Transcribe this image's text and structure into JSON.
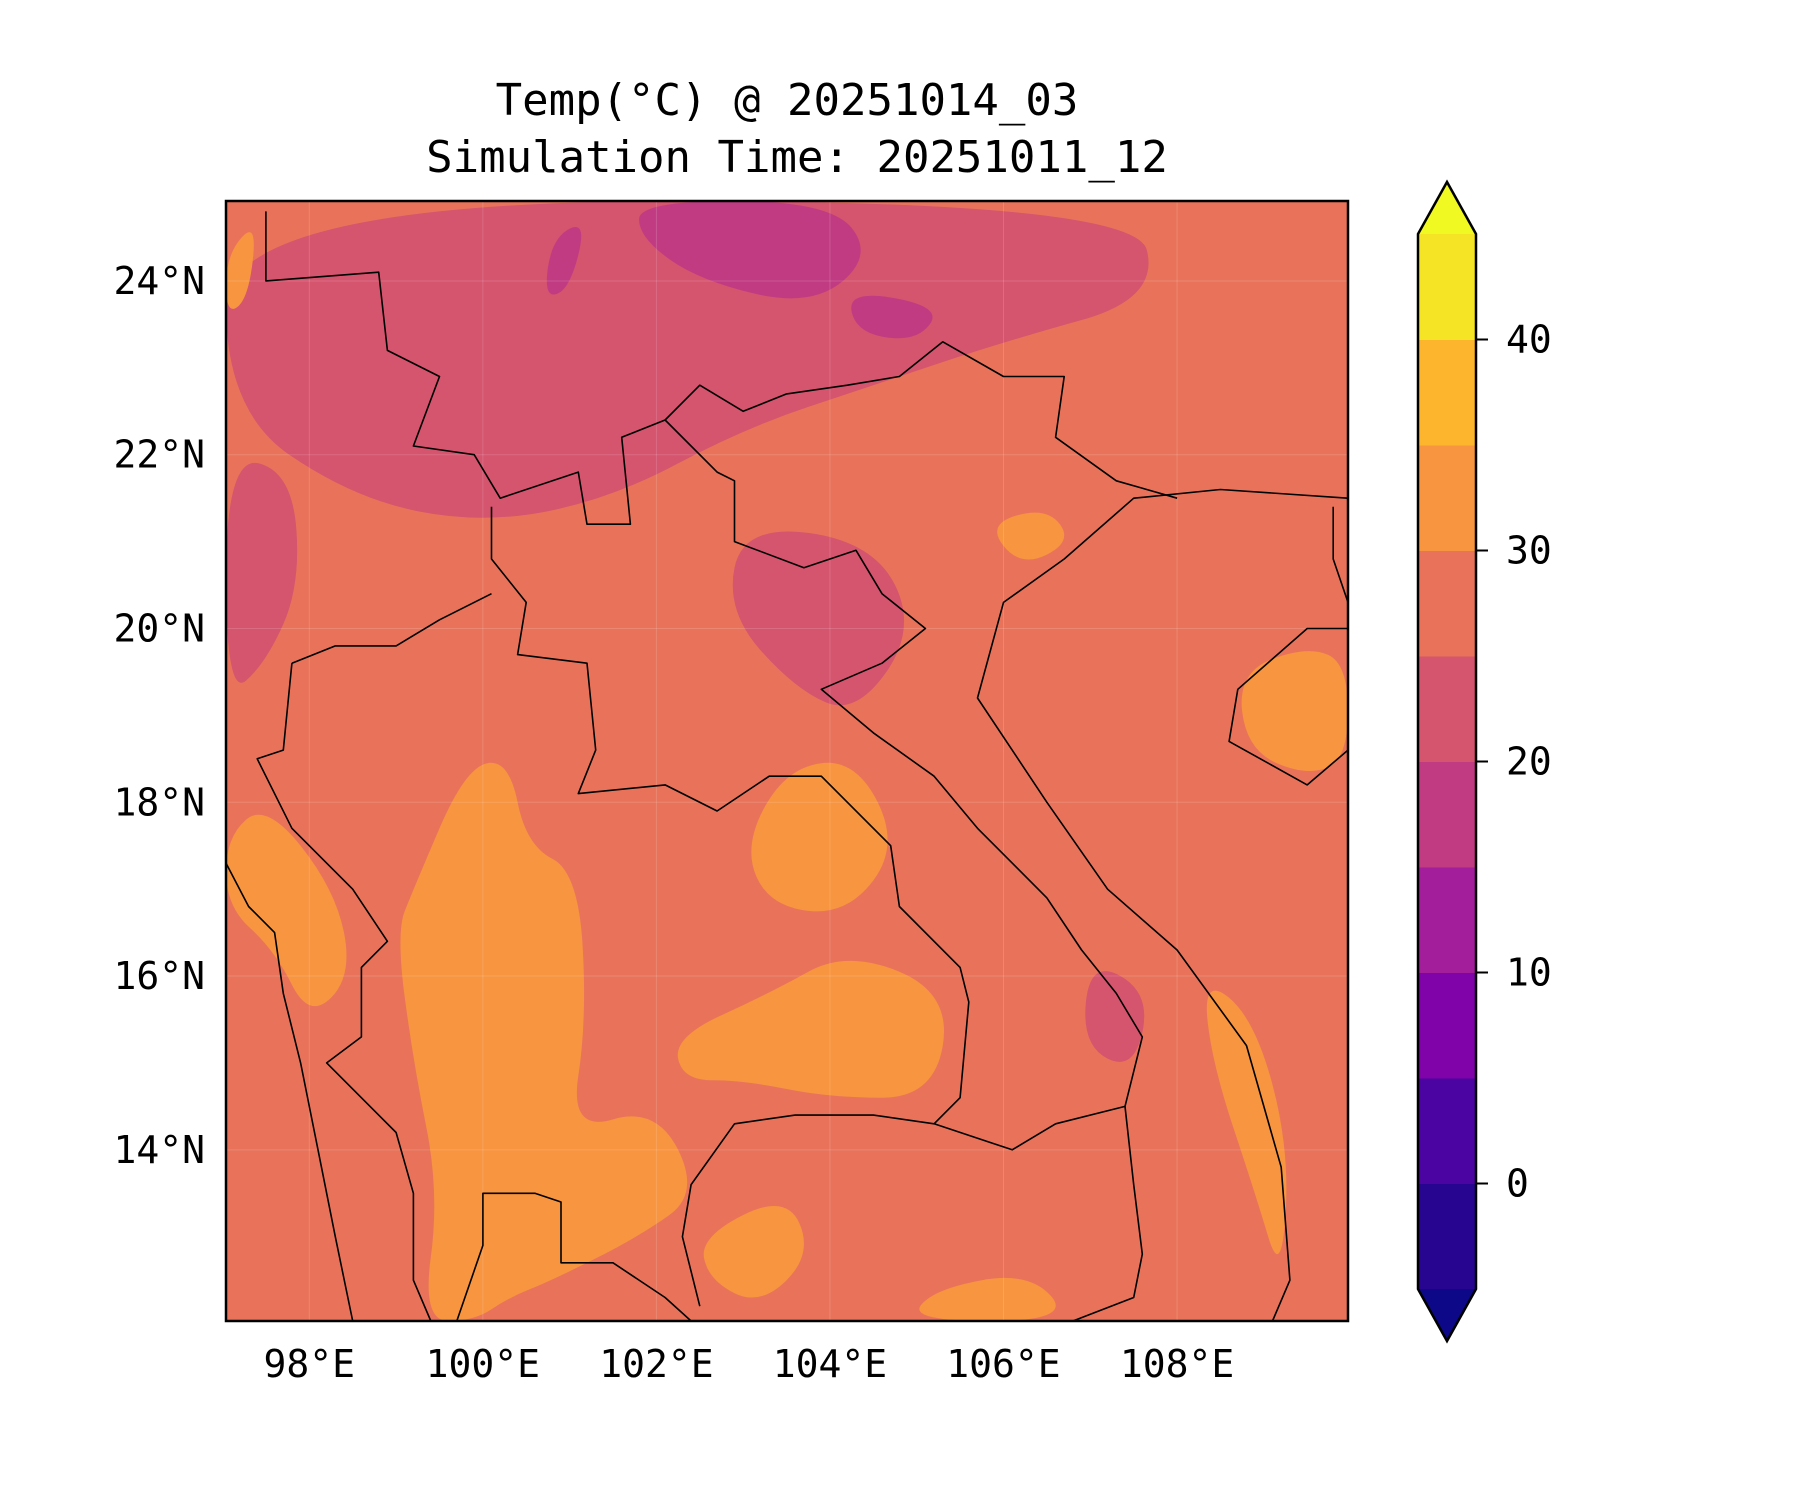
{
  "chart_data": {
    "type": "heatmap",
    "subtype": "filled-contour-map",
    "title": "Temp(°C) @ 20251014_03",
    "subtitle": "Simulation Time: 20251011_12",
    "xlim": [
      97.04,
      109.97
    ],
    "ylim": [
      12.03,
      24.92
    ],
    "x_ticks": [
      98,
      100,
      102,
      104,
      106,
      108
    ],
    "x_tick_labels": [
      "98°E",
      "100°E",
      "102°E",
      "104°E",
      "106°E",
      "108°E"
    ],
    "y_ticks": [
      24,
      22,
      20,
      18,
      16,
      14
    ],
    "y_tick_labels": [
      "24°N",
      "22°N",
      "20°N",
      "18°N",
      "16°N",
      "14°N"
    ],
    "grid": true,
    "colorbar": {
      "placement": "right",
      "extend": "both",
      "levels": [
        -5,
        0,
        5,
        10,
        15,
        20,
        25,
        30,
        35,
        40,
        45
      ],
      "colors": [
        "#270591",
        "#4B03A1",
        "#7F03A8",
        "#A31E9A",
        "#C13B82",
        "#D5546E",
        "#E8735A",
        "#F89540",
        "#FDB52E",
        "#F5E425"
      ],
      "under_color": "#0D0887",
      "over_color": "#F0F921",
      "ticks": [
        0,
        10,
        20,
        30,
        40
      ],
      "tick_labels": [
        "0",
        "10",
        "20",
        "30",
        "40"
      ]
    },
    "background_level_color": "#E8735A",
    "regions": [
      {
        "color": "#D5546E",
        "poly": [
          [
            97.04,
            24.92
          ],
          [
            107.5,
            24.92
          ],
          [
            107.8,
            23.8
          ],
          [
            106,
            23.3
          ],
          [
            104.5,
            22.8
          ],
          [
            103,
            22.3
          ],
          [
            101.5,
            21.5
          ],
          [
            100,
            21.2
          ],
          [
            98.5,
            21.5
          ],
          [
            97.04,
            22.5
          ]
        ]
      },
      {
        "color": "#D5546E",
        "poly": [
          [
            97.04,
            22.0
          ],
          [
            97.8,
            21.8
          ],
          [
            97.9,
            20.5
          ],
          [
            97.5,
            19.6
          ],
          [
            97.04,
            19.2
          ]
        ]
      },
      {
        "color": "#D5546E",
        "poly": [
          [
            103.0,
            21.2
          ],
          [
            104.5,
            21.0
          ],
          [
            105.0,
            20.0
          ],
          [
            104.3,
            19.0
          ],
          [
            103.6,
            19.3
          ],
          [
            102.8,
            20.2
          ]
        ]
      },
      {
        "color": "#D5546E",
        "poly": [
          [
            107.0,
            16.2
          ],
          [
            107.7,
            15.8
          ],
          [
            107.5,
            14.9
          ],
          [
            106.9,
            15.2
          ]
        ]
      },
      {
        "color": "#C13B82",
        "poly": [
          [
            101.8,
            24.92
          ],
          [
            104.0,
            24.92
          ],
          [
            104.5,
            24.3
          ],
          [
            103.8,
            23.7
          ],
          [
            102.5,
            24.0
          ],
          [
            101.8,
            24.5
          ]
        ]
      },
      {
        "color": "#C13B82",
        "poly": [
          [
            104.2,
            23.9
          ],
          [
            105.3,
            23.7
          ],
          [
            105.0,
            23.3
          ],
          [
            104.3,
            23.4
          ]
        ]
      },
      {
        "color": "#C13B82",
        "poly": [
          [
            100.8,
            24.5
          ],
          [
            101.2,
            24.7
          ],
          [
            101.0,
            23.9
          ],
          [
            100.7,
            23.8
          ]
        ]
      },
      {
        "color": "#F89540",
        "poly": [
          [
            99.2,
            17.0
          ],
          [
            99.8,
            18.4
          ],
          [
            100.3,
            18.5
          ],
          [
            100.5,
            17.5
          ],
          [
            101.1,
            17.2
          ],
          [
            101.2,
            15.5
          ],
          [
            101.0,
            14.2
          ],
          [
            102.0,
            14.5
          ],
          [
            102.5,
            13.5
          ],
          [
            101.8,
            13.0
          ],
          [
            100.8,
            12.5
          ],
          [
            100.3,
            12.3
          ],
          [
            99.9,
            12.03
          ],
          [
            99.3,
            12.03
          ],
          [
            99.5,
            13.5
          ],
          [
            99.2,
            15.0
          ],
          [
            99.0,
            16.5
          ]
        ]
      },
      {
        "color": "#F89540",
        "poly": [
          [
            103.5,
            18.4
          ],
          [
            104.3,
            18.5
          ],
          [
            104.8,
            17.5
          ],
          [
            104.2,
            16.7
          ],
          [
            103.3,
            16.8
          ],
          [
            103.0,
            17.5
          ]
        ]
      },
      {
        "color": "#F89540",
        "poly": [
          [
            102.2,
            15.3
          ],
          [
            103.3,
            15.8
          ],
          [
            104.2,
            16.3
          ],
          [
            105.4,
            15.8
          ],
          [
            105.2,
            14.6
          ],
          [
            104.0,
            14.6
          ],
          [
            103.0,
            14.8
          ],
          [
            102.3,
            14.8
          ]
        ]
      },
      {
        "color": "#F89540",
        "poly": [
          [
            97.04,
            17.6
          ],
          [
            97.5,
            18.0
          ],
          [
            98.3,
            17.0
          ],
          [
            98.5,
            16.0
          ],
          [
            98.0,
            15.5
          ],
          [
            97.6,
            16.3
          ],
          [
            97.04,
            16.8
          ]
        ]
      },
      {
        "color": "#F89540",
        "poly": [
          [
            105.8,
            21.2
          ],
          [
            106.5,
            21.4
          ],
          [
            106.8,
            21.0
          ],
          [
            106.2,
            20.7
          ]
        ]
      },
      {
        "color": "#F89540",
        "poly": [
          [
            108.7,
            19.5
          ],
          [
            109.5,
            19.8
          ],
          [
            109.97,
            19.6
          ],
          [
            109.97,
            18.5
          ],
          [
            109.5,
            18.3
          ],
          [
            108.8,
            18.6
          ]
        ]
      },
      {
        "color": "#F89540",
        "poly": [
          [
            102.5,
            13.0
          ],
          [
            103.5,
            13.5
          ],
          [
            103.8,
            12.8
          ],
          [
            103.2,
            12.2
          ],
          [
            102.6,
            12.5
          ]
        ]
      },
      {
        "color": "#F89540",
        "poly": [
          [
            108.3,
            16.0
          ],
          [
            108.9,
            15.5
          ],
          [
            109.3,
            14.0
          ],
          [
            109.2,
            12.5
          ],
          [
            108.9,
            13.5
          ],
          [
            108.4,
            15.0
          ]
        ]
      },
      {
        "color": "#F89540",
        "poly": [
          [
            97.04,
            24.3
          ],
          [
            97.4,
            24.7
          ],
          [
            97.3,
            23.8
          ],
          [
            97.04,
            23.6
          ]
        ]
      },
      {
        "color": "#F89540",
        "poly": [
          [
            105.2,
            12.4
          ],
          [
            106.3,
            12.6
          ],
          [
            106.8,
            12.03
          ],
          [
            104.9,
            12.03
          ]
        ]
      }
    ],
    "borders": [
      [
        [
          109.97,
          21.5
        ],
        [
          108.5,
          21.6
        ],
        [
          107.5,
          21.5
        ],
        [
          106.7,
          20.8
        ],
        [
          106.0,
          20.3
        ],
        [
          105.7,
          19.2
        ],
        [
          106.5,
          18.0
        ],
        [
          107.2,
          17.0
        ],
        [
          108.0,
          16.3
        ],
        [
          108.8,
          15.2
        ],
        [
          109.2,
          13.8
        ],
        [
          109.3,
          12.5
        ],
        [
          109.1,
          12.03
        ]
      ],
      [
        [
          109.97,
          20.0
        ],
        [
          109.5,
          20.0
        ],
        [
          108.7,
          19.3
        ],
        [
          108.6,
          18.7
        ],
        [
          109.5,
          18.2
        ],
        [
          109.97,
          18.6
        ]
      ],
      [
        [
          109.8,
          21.4
        ],
        [
          109.8,
          20.8
        ],
        [
          109.97,
          20.3
        ]
      ],
      [
        [
          97.5,
          24.8
        ],
        [
          97.5,
          24.0
        ],
        [
          98.8,
          24.1
        ],
        [
          98.9,
          23.2
        ],
        [
          99.5,
          22.9
        ],
        [
          99.2,
          22.1
        ],
        [
          99.9,
          22.0
        ],
        [
          100.2,
          21.5
        ],
        [
          101.1,
          21.8
        ],
        [
          101.2,
          21.2
        ],
        [
          101.7,
          21.2
        ],
        [
          101.6,
          22.2
        ],
        [
          102.1,
          22.4
        ],
        [
          102.5,
          22.8
        ],
        [
          103.0,
          22.5
        ],
        [
          103.5,
          22.7
        ],
        [
          104.2,
          22.8
        ],
        [
          104.8,
          22.9
        ],
        [
          105.3,
          23.3
        ],
        [
          106.0,
          22.9
        ],
        [
          106.7,
          22.9
        ],
        [
          106.6,
          22.2
        ],
        [
          107.3,
          21.7
        ],
        [
          108.0,
          21.5
        ]
      ],
      [
        [
          102.1,
          22.4
        ],
        [
          102.7,
          21.8
        ],
        [
          102.9,
          21.7
        ],
        [
          102.9,
          21.0
        ],
        [
          103.7,
          20.7
        ],
        [
          104.3,
          20.9
        ],
        [
          104.6,
          20.4
        ],
        [
          105.1,
          20.0
        ],
        [
          104.6,
          19.6
        ],
        [
          103.9,
          19.3
        ],
        [
          104.5,
          18.8
        ],
        [
          105.2,
          18.3
        ],
        [
          105.7,
          17.7
        ],
        [
          106.5,
          16.9
        ],
        [
          106.9,
          16.3
        ],
        [
          107.3,
          15.8
        ],
        [
          107.6,
          15.3
        ],
        [
          107.4,
          14.5
        ],
        [
          107.5,
          13.6
        ],
        [
          107.6,
          12.8
        ],
        [
          107.5,
          12.3
        ],
        [
          106.8,
          12.03
        ]
      ],
      [
        [
          100.1,
          21.4
        ],
        [
          100.1,
          20.8
        ],
        [
          100.5,
          20.3
        ],
        [
          100.4,
          19.7
        ],
        [
          101.2,
          19.6
        ],
        [
          101.3,
          18.6
        ],
        [
          101.1,
          18.1
        ],
        [
          102.1,
          18.2
        ],
        [
          102.7,
          17.9
        ],
        [
          103.3,
          18.3
        ],
        [
          103.9,
          18.3
        ],
        [
          104.7,
          17.5
        ],
        [
          104.8,
          16.8
        ],
        [
          105.5,
          16.1
        ],
        [
          105.6,
          15.7
        ],
        [
          105.5,
          14.6
        ],
        [
          105.2,
          14.3
        ],
        [
          106.1,
          14.0
        ],
        [
          106.6,
          14.3
        ],
        [
          107.4,
          14.5
        ]
      ],
      [
        [
          105.2,
          14.3
        ],
        [
          104.5,
          14.4
        ],
        [
          103.6,
          14.4
        ],
        [
          102.9,
          14.3
        ],
        [
          102.4,
          13.6
        ],
        [
          102.3,
          13.0
        ],
        [
          102.5,
          12.2
        ]
      ],
      [
        [
          97.8,
          19.6
        ],
        [
          98.3,
          19.8
        ],
        [
          99.0,
          19.8
        ],
        [
          99.5,
          20.1
        ],
        [
          100.1,
          20.4
        ]
      ],
      [
        [
          97.8,
          19.6
        ],
        [
          97.7,
          18.6
        ],
        [
          97.4,
          18.5
        ],
        [
          97.8,
          17.7
        ],
        [
          98.5,
          17.0
        ],
        [
          98.9,
          16.4
        ],
        [
          98.6,
          16.1
        ],
        [
          98.6,
          15.3
        ],
        [
          98.2,
          15.0
        ],
        [
          99.0,
          14.2
        ],
        [
          99.2,
          13.5
        ],
        [
          99.2,
          12.5
        ],
        [
          99.4,
          12.03
        ]
      ],
      [
        [
          99.7,
          12.03
        ],
        [
          100.0,
          12.9
        ],
        [
          100.0,
          13.5
        ],
        [
          100.6,
          13.5
        ],
        [
          100.9,
          13.4
        ],
        [
          100.9,
          12.7
        ],
        [
          101.5,
          12.7
        ],
        [
          102.1,
          12.3
        ],
        [
          102.4,
          12.03
        ]
      ],
      [
        [
          97.04,
          17.3
        ],
        [
          97.3,
          16.8
        ],
        [
          97.6,
          16.5
        ],
        [
          97.7,
          15.8
        ],
        [
          97.9,
          15.0
        ],
        [
          98.1,
          14.0
        ],
        [
          98.3,
          13.0
        ],
        [
          98.5,
          12.03
        ]
      ]
    ]
  }
}
